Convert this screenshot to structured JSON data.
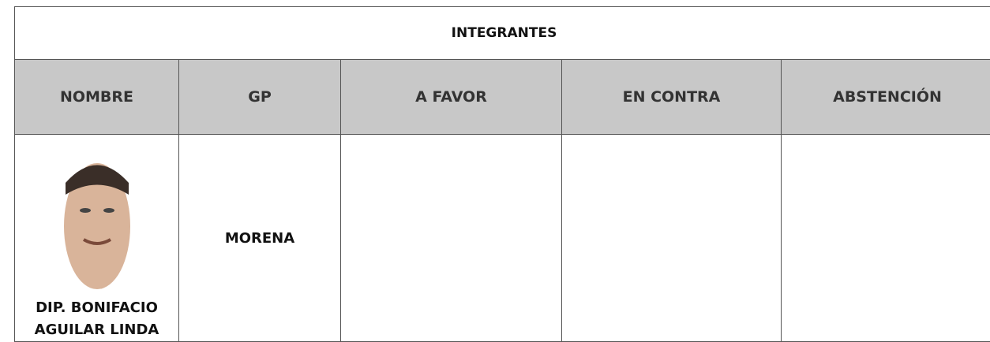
{
  "table": {
    "title": "INTEGRANTES",
    "headers": [
      "NOMBRE",
      "GP",
      "A FAVOR",
      "EN CONTRA",
      "ABSTENCIÓN"
    ],
    "rows": [
      [
        "DIP. BONIFACIO AGUILAR LINDA",
        "MORENA",
        "",
        "",
        ""
      ]
    ]
  }
}
